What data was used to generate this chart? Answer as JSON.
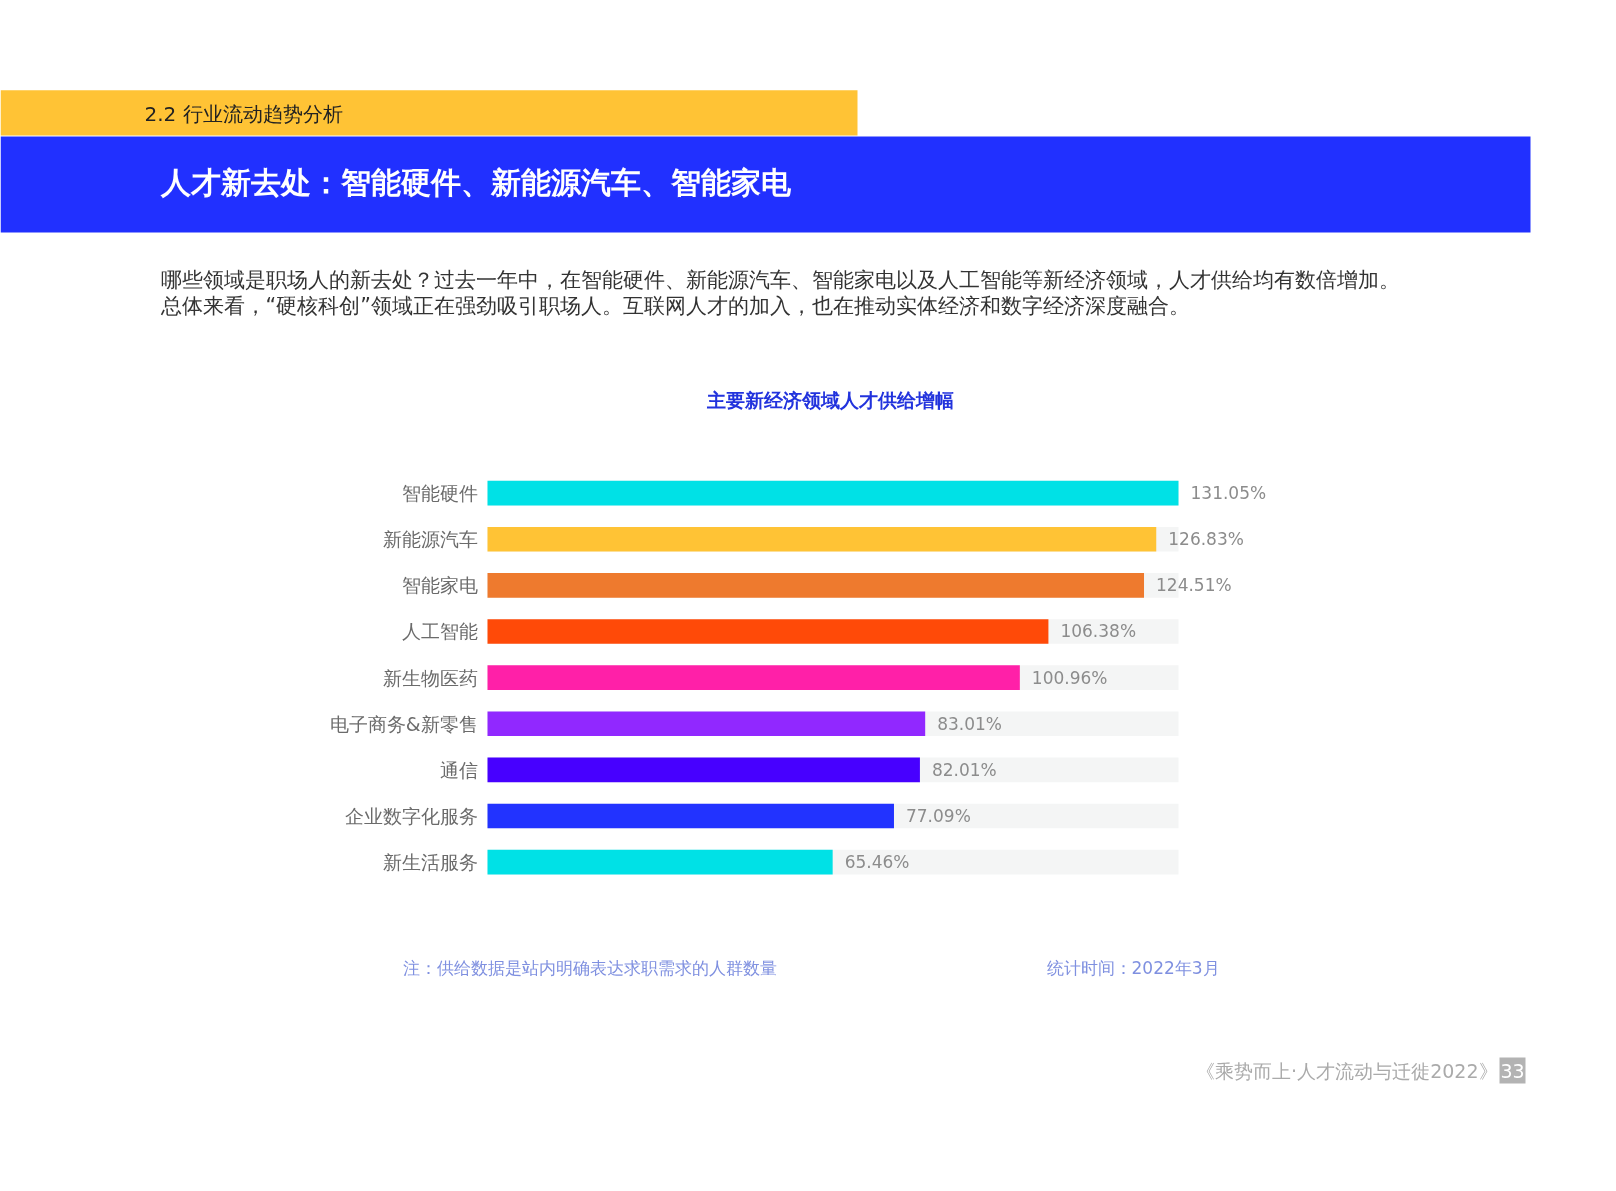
{
  "chart_data": {
    "type": "bar",
    "orientation": "horizontal",
    "title": "主要新经济领域人才供给增幅",
    "categories": [
      "智能硬件",
      "新能源汽车",
      "智能家电",
      "人工智能",
      "新生物医药",
      "电子商务&新零售",
      "通信",
      "企业数字化服务",
      "新生活服务"
    ],
    "values": [
      131.05,
      126.83,
      124.51,
      106.38,
      100.96,
      83.01,
      82.01,
      77.09,
      65.46
    ],
    "value_labels": [
      "131.05%",
      "126.83%",
      "124.51%",
      "106.38%",
      "100.96%",
      "83.01%",
      "82.01%",
      "77.09%",
      "65.46%"
    ],
    "colors": [
      "#00e1e6",
      "#ffc335",
      "#ee7a2e",
      "#ff4a08",
      "#ff20a8",
      "#9128ff",
      "#4700ff",
      "#2233ff",
      "#00e1e6"
    ],
    "annotations": [
      "2.2 行业流动趋势分析",
      "人才新去处：智能硬件、新能源汽车、智能家电",
      "哪些领域是职场人的新去处？过去一年中，在智能硬件、新能源汽车、智能家电以及人工智能等新经济领域，人才供给均有数倍增加。",
      "总体来看，“硬核科创”领域正在强劲吸引职场人。互联网人才的加入，也在推动实体经济和数字经济深度融合。",
      "注：供给数据是站内明确表达求职需求的人群数量",
      "统计时间：2022年3月",
      "《乘势而上·人才流动与迁徙2022》",
      "33"
    ]
  }
}
